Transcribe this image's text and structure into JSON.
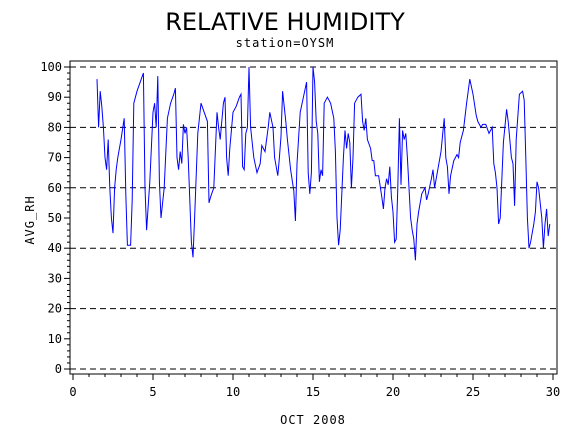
{
  "chart_data": {
    "type": "line",
    "title": "RELATIVE HUMIDITY",
    "subtitle": "station=OYSM",
    "xlabel": "OCT 2008",
    "ylabel": "AVG_RH",
    "xlim": [
      0,
      30
    ],
    "ylim": [
      0,
      100
    ],
    "x_ticks": [
      0,
      5,
      10,
      15,
      20,
      25,
      30
    ],
    "y_ticks": [
      0,
      10,
      20,
      30,
      40,
      50,
      60,
      70,
      80,
      90,
      100
    ],
    "reference_lines": [
      0,
      20,
      40,
      60,
      80,
      100
    ],
    "series_color": "#0000ff",
    "series": [
      {
        "name": "",
        "points": [
          [
            1.5,
            96
          ],
          [
            1.6,
            80
          ],
          [
            1.7,
            92
          ],
          [
            1.8,
            87
          ],
          [
            1.9,
            80
          ],
          [
            2.0,
            70
          ],
          [
            2.1,
            66
          ],
          [
            2.2,
            76
          ],
          [
            2.3,
            60
          ],
          [
            2.4,
            50
          ],
          [
            2.5,
            45
          ],
          [
            2.6,
            60
          ],
          [
            2.7,
            66
          ],
          [
            2.8,
            70
          ],
          [
            3.0,
            76
          ],
          [
            3.2,
            83
          ],
          [
            3.3,
            58
          ],
          [
            3.4,
            41
          ],
          [
            3.6,
            41
          ],
          [
            3.7,
            56
          ],
          [
            3.8,
            88
          ],
          [
            4.0,
            92
          ],
          [
            4.2,
            95
          ],
          [
            4.4,
            98
          ],
          [
            4.5,
            60
          ],
          [
            4.6,
            46
          ],
          [
            4.8,
            62
          ],
          [
            5.0,
            85
          ],
          [
            5.1,
            88
          ],
          [
            5.2,
            80
          ],
          [
            5.3,
            97
          ],
          [
            5.4,
            62
          ],
          [
            5.5,
            50
          ],
          [
            5.7,
            60
          ],
          [
            5.9,
            83
          ],
          [
            6.1,
            88
          ],
          [
            6.3,
            91
          ],
          [
            6.4,
            93
          ],
          [
            6.5,
            70
          ],
          [
            6.6,
            66
          ],
          [
            6.7,
            72
          ],
          [
            6.8,
            68
          ],
          [
            6.9,
            81
          ],
          [
            7.0,
            78
          ],
          [
            7.1,
            80
          ],
          [
            7.2,
            70
          ],
          [
            7.4,
            42
          ],
          [
            7.5,
            37
          ],
          [
            7.6,
            50
          ],
          [
            7.8,
            78
          ],
          [
            8.0,
            88
          ],
          [
            8.2,
            85
          ],
          [
            8.4,
            82
          ],
          [
            8.5,
            55
          ],
          [
            8.6,
            57
          ],
          [
            8.8,
            60
          ],
          [
            9.0,
            85
          ],
          [
            9.1,
            80
          ],
          [
            9.2,
            76
          ],
          [
            9.4,
            88
          ],
          [
            9.5,
            90
          ],
          [
            9.6,
            70
          ],
          [
            9.7,
            64
          ],
          [
            9.8,
            73
          ],
          [
            10.0,
            85
          ],
          [
            10.2,
            87
          ],
          [
            10.4,
            90
          ],
          [
            10.5,
            91
          ],
          [
            10.6,
            67
          ],
          [
            10.7,
            66
          ],
          [
            10.8,
            78
          ],
          [
            10.9,
            80
          ],
          [
            11.0,
            100
          ],
          [
            11.1,
            80
          ],
          [
            11.3,
            70
          ],
          [
            11.5,
            65
          ],
          [
            11.7,
            68
          ],
          [
            11.8,
            74
          ],
          [
            12.0,
            72
          ],
          [
            12.2,
            80
          ],
          [
            12.3,
            85
          ],
          [
            12.5,
            80
          ],
          [
            12.6,
            70
          ],
          [
            12.8,
            64
          ],
          [
            12.9,
            70
          ],
          [
            13.0,
            77
          ],
          [
            13.1,
            92
          ],
          [
            13.3,
            82
          ],
          [
            13.4,
            76
          ],
          [
            13.6,
            66
          ],
          [
            13.8,
            59
          ],
          [
            13.9,
            49
          ],
          [
            14.0,
            68
          ],
          [
            14.2,
            85
          ],
          [
            14.4,
            90
          ],
          [
            14.6,
            95
          ],
          [
            14.7,
            65
          ],
          [
            14.8,
            58
          ],
          [
            14.9,
            65
          ],
          [
            15.0,
            100
          ],
          [
            15.1,
            95
          ],
          [
            15.2,
            82
          ],
          [
            15.3,
            78
          ],
          [
            15.4,
            62
          ],
          [
            15.5,
            66
          ],
          [
            15.6,
            64
          ],
          [
            15.7,
            88
          ],
          [
            15.9,
            90
          ],
          [
            16.1,
            88
          ],
          [
            16.3,
            83
          ],
          [
            16.4,
            72
          ],
          [
            16.5,
            50
          ],
          [
            16.6,
            41
          ],
          [
            16.7,
            46
          ],
          [
            16.9,
            70
          ],
          [
            17.0,
            79
          ],
          [
            17.1,
            73
          ],
          [
            17.2,
            78
          ],
          [
            17.3,
            75
          ],
          [
            17.4,
            60
          ],
          [
            17.5,
            70
          ],
          [
            17.6,
            88
          ],
          [
            17.8,
            90
          ],
          [
            18.0,
            91
          ],
          [
            18.1,
            82
          ],
          [
            18.2,
            79
          ],
          [
            18.3,
            83
          ],
          [
            18.4,
            76
          ],
          [
            18.6,
            73
          ],
          [
            18.7,
            69
          ],
          [
            18.8,
            69
          ],
          [
            18.9,
            64
          ],
          [
            19.1,
            64
          ],
          [
            19.3,
            57
          ],
          [
            19.4,
            53
          ],
          [
            19.5,
            60
          ],
          [
            19.6,
            63
          ],
          [
            19.7,
            61
          ],
          [
            19.8,
            67
          ],
          [
            19.9,
            57
          ],
          [
            20.0,
            52
          ],
          [
            20.1,
            42
          ],
          [
            20.2,
            43
          ],
          [
            20.3,
            60
          ],
          [
            20.4,
            83
          ],
          [
            20.5,
            61
          ],
          [
            20.6,
            79
          ],
          [
            20.7,
            76
          ],
          [
            20.8,
            78
          ],
          [
            20.9,
            70
          ],
          [
            21.0,
            60
          ],
          [
            21.1,
            50
          ],
          [
            21.2,
            46
          ],
          [
            21.3,
            43
          ],
          [
            21.4,
            36
          ],
          [
            21.5,
            48
          ],
          [
            21.6,
            52
          ],
          [
            21.8,
            58
          ],
          [
            22.0,
            60
          ],
          [
            22.1,
            56
          ],
          [
            22.2,
            58
          ],
          [
            22.4,
            63
          ],
          [
            22.5,
            66
          ],
          [
            22.6,
            60
          ],
          [
            22.8,
            66
          ],
          [
            23.0,
            72
          ],
          [
            23.2,
            83
          ],
          [
            23.3,
            70
          ],
          [
            23.4,
            67
          ],
          [
            23.5,
            58
          ],
          [
            23.6,
            64
          ],
          [
            23.8,
            69
          ],
          [
            24.0,
            71
          ],
          [
            24.1,
            70
          ],
          [
            24.2,
            75
          ],
          [
            24.4,
            79
          ],
          [
            24.6,
            88
          ],
          [
            24.8,
            96
          ],
          [
            25.0,
            91
          ],
          [
            25.2,
            84
          ],
          [
            25.3,
            82
          ],
          [
            25.5,
            80
          ],
          [
            25.6,
            81
          ],
          [
            25.8,
            81
          ],
          [
            26.0,
            78
          ],
          [
            26.2,
            80
          ],
          [
            26.3,
            68
          ],
          [
            26.4,
            65
          ],
          [
            26.5,
            60
          ],
          [
            26.6,
            48
          ],
          [
            26.7,
            50
          ],
          [
            26.9,
            75
          ],
          [
            27.1,
            86
          ],
          [
            27.2,
            82
          ],
          [
            27.3,
            76
          ],
          [
            27.4,
            70
          ],
          [
            27.5,
            68
          ],
          [
            27.6,
            54
          ],
          [
            27.7,
            76
          ],
          [
            27.9,
            91
          ],
          [
            28.1,
            92
          ],
          [
            28.2,
            89
          ],
          [
            28.3,
            70
          ],
          [
            28.4,
            50
          ],
          [
            28.5,
            40
          ],
          [
            28.6,
            42
          ],
          [
            28.7,
            45
          ],
          [
            28.8,
            48
          ],
          [
            28.9,
            52
          ],
          [
            29.0,
            62
          ],
          [
            29.1,
            60
          ],
          [
            29.2,
            55
          ],
          [
            29.3,
            50
          ],
          [
            29.4,
            40
          ],
          [
            29.5,
            48
          ],
          [
            29.6,
            53
          ],
          [
            29.7,
            44
          ],
          [
            29.8,
            48
          ]
        ]
      }
    ]
  }
}
